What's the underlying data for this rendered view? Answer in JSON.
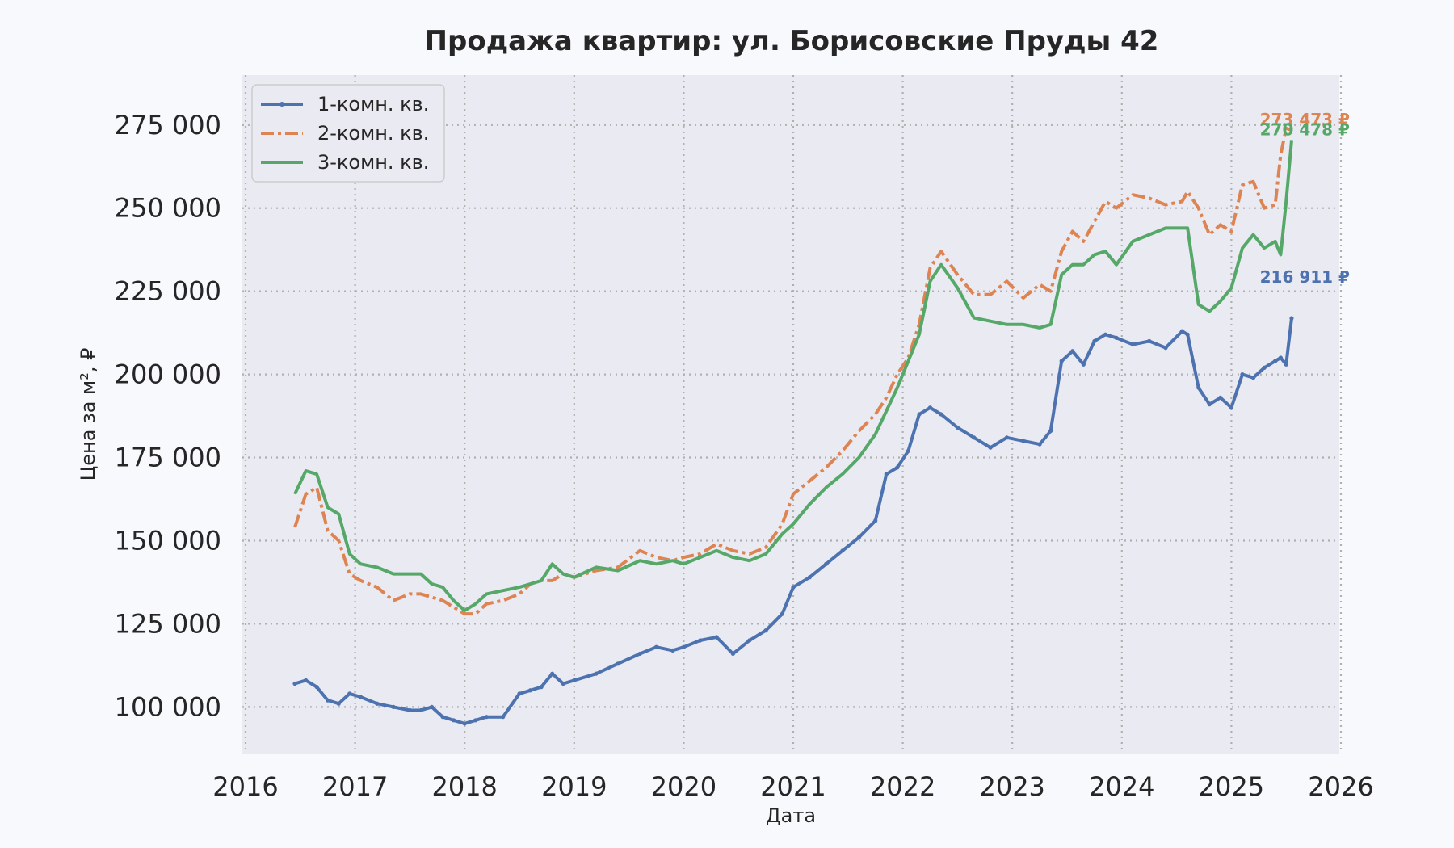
{
  "chart_data": {
    "type": "line",
    "title": "Продажа квартир: ул. Борисовские Пруды 42",
    "xlabel": "Дата",
    "ylabel": "Цена за м², ₽",
    "xlim": [
      2016.0,
      2026.0
    ],
    "ylim": [
      86000,
      290000
    ],
    "x_ticks": [
      "2016",
      "2017",
      "2018",
      "2019",
      "2020",
      "2021",
      "2022",
      "2023",
      "2024",
      "2025",
      "2026"
    ],
    "y_ticks": [
      "100 000",
      "125 000",
      "150 000",
      "175 000",
      "200 000",
      "225 000",
      "250 000",
      "275 000"
    ],
    "grid": true,
    "legend_position": "top-left",
    "series": [
      {
        "name": "1-комн. кв.",
        "color": "#4c72b0",
        "style": "solid-dotted",
        "end_label": "216 911 ₽",
        "x": [
          2016.45,
          2016.55,
          2016.65,
          2016.75,
          2016.85,
          2016.95,
          2017.05,
          2017.2,
          2017.35,
          2017.5,
          2017.6,
          2017.7,
          2017.8,
          2017.9,
          2018.0,
          2018.1,
          2018.2,
          2018.35,
          2018.5,
          2018.6,
          2018.7,
          2018.8,
          2018.9,
          2019.0,
          2019.2,
          2019.4,
          2019.6,
          2019.75,
          2019.9,
          2020.0,
          2020.15,
          2020.3,
          2020.45,
          2020.6,
          2020.75,
          2020.9,
          2021.0,
          2021.15,
          2021.3,
          2021.45,
          2021.6,
          2021.75,
          2021.85,
          2021.95,
          2022.05,
          2022.15,
          2022.25,
          2022.35,
          2022.5,
          2022.65,
          2022.8,
          2022.95,
          2023.1,
          2023.25,
          2023.35,
          2023.45,
          2023.55,
          2023.65,
          2023.75,
          2023.85,
          2023.95,
          2024.1,
          2024.25,
          2024.4,
          2024.55,
          2024.6,
          2024.7,
          2024.8,
          2024.9,
          2025.0,
          2025.1,
          2025.2,
          2025.3,
          2025.4,
          2025.45,
          2025.5,
          2025.55
        ],
        "y": [
          107000,
          108000,
          106000,
          102000,
          101000,
          104000,
          103000,
          101000,
          100000,
          99000,
          99000,
          100000,
          97000,
          96000,
          95000,
          96000,
          97000,
          97000,
          104000,
          105000,
          106000,
          110000,
          107000,
          108000,
          110000,
          113000,
          116000,
          118000,
          117000,
          118000,
          120000,
          121000,
          116000,
          120000,
          123000,
          128000,
          136000,
          139000,
          143000,
          147000,
          151000,
          156000,
          170000,
          172000,
          177000,
          188000,
          190000,
          188000,
          184000,
          181000,
          178000,
          181000,
          180000,
          179000,
          183000,
          204000,
          207000,
          203000,
          210000,
          212000,
          211000,
          209000,
          210000,
          208000,
          213000,
          212000,
          196000,
          191000,
          193000,
          190000,
          200000,
          199000,
          202000,
          204000,
          205000,
          203000,
          216911
        ]
      },
      {
        "name": "2-комн. кв.",
        "color": "#dd8452",
        "style": "dashdot",
        "end_label": "273 473 ₽",
        "x": [
          2016.45,
          2016.55,
          2016.65,
          2016.75,
          2016.85,
          2016.95,
          2017.05,
          2017.2,
          2017.35,
          2017.5,
          2017.6,
          2017.7,
          2017.8,
          2017.9,
          2018.0,
          2018.1,
          2018.2,
          2018.35,
          2018.5,
          2018.6,
          2018.7,
          2018.8,
          2018.9,
          2019.0,
          2019.2,
          2019.4,
          2019.6,
          2019.75,
          2019.9,
          2020.0,
          2020.15,
          2020.3,
          2020.45,
          2020.6,
          2020.75,
          2020.9,
          2021.0,
          2021.15,
          2021.3,
          2021.45,
          2021.6,
          2021.75,
          2021.85,
          2021.95,
          2022.05,
          2022.15,
          2022.25,
          2022.35,
          2022.5,
          2022.65,
          2022.8,
          2022.95,
          2023.1,
          2023.25,
          2023.35,
          2023.45,
          2023.55,
          2023.65,
          2023.75,
          2023.85,
          2023.95,
          2024.1,
          2024.25,
          2024.4,
          2024.55,
          2024.6,
          2024.7,
          2024.8,
          2024.9,
          2025.0,
          2025.1,
          2025.2,
          2025.3,
          2025.4,
          2025.45,
          2025.5,
          2025.55
        ],
        "y": [
          154000,
          164000,
          166000,
          153000,
          150000,
          140000,
          138000,
          136000,
          132000,
          134000,
          134000,
          133000,
          132000,
          130000,
          128000,
          128000,
          131000,
          132000,
          134000,
          137000,
          138000,
          138000,
          140000,
          139000,
          141000,
          142000,
          147000,
          145000,
          144000,
          145000,
          146000,
          149000,
          147000,
          146000,
          148000,
          155000,
          164000,
          168000,
          172000,
          177000,
          183000,
          188000,
          193000,
          200000,
          205000,
          215000,
          232000,
          237000,
          230000,
          224000,
          224000,
          228000,
          223000,
          227000,
          225000,
          237000,
          243000,
          240000,
          246000,
          252000,
          250000,
          254000,
          253000,
          251000,
          252000,
          255000,
          250000,
          242000,
          245000,
          243000,
          257000,
          258000,
          250000,
          251000,
          266000,
          274000,
          273473
        ]
      },
      {
        "name": "3-комн. кв.",
        "color": "#55a868",
        "style": "solid",
        "end_label": "270 478 ₽",
        "x": [
          2016.45,
          2016.55,
          2016.65,
          2016.75,
          2016.85,
          2016.95,
          2017.05,
          2017.2,
          2017.35,
          2017.5,
          2017.6,
          2017.7,
          2017.8,
          2017.9,
          2018.0,
          2018.1,
          2018.2,
          2018.35,
          2018.5,
          2018.6,
          2018.7,
          2018.8,
          2018.9,
          2019.0,
          2019.2,
          2019.4,
          2019.6,
          2019.75,
          2019.9,
          2020.0,
          2020.15,
          2020.3,
          2020.45,
          2020.6,
          2020.75,
          2020.9,
          2021.0,
          2021.15,
          2021.3,
          2021.45,
          2021.6,
          2021.75,
          2021.85,
          2021.95,
          2022.05,
          2022.15,
          2022.25,
          2022.35,
          2022.5,
          2022.65,
          2022.8,
          2022.95,
          2023.1,
          2023.25,
          2023.35,
          2023.45,
          2023.55,
          2023.65,
          2023.75,
          2023.85,
          2023.95,
          2024.1,
          2024.25,
          2024.4,
          2024.55,
          2024.6,
          2024.7,
          2024.8,
          2024.9,
          2025.0,
          2025.1,
          2025.2,
          2025.3,
          2025.4,
          2025.45,
          2025.5,
          2025.55
        ],
        "y": [
          164000,
          171000,
          170000,
          160000,
          158000,
          146000,
          143000,
          142000,
          140000,
          140000,
          140000,
          137000,
          136000,
          132000,
          129000,
          131000,
          134000,
          135000,
          136000,
          137000,
          138000,
          143000,
          140000,
          139000,
          142000,
          141000,
          144000,
          143000,
          144000,
          143000,
          145000,
          147000,
          145000,
          144000,
          146000,
          152000,
          155000,
          161000,
          166000,
          170000,
          175000,
          182000,
          189000,
          196000,
          204000,
          212000,
          228000,
          233000,
          226000,
          217000,
          216000,
          215000,
          215000,
          214000,
          215000,
          230000,
          233000,
          233000,
          236000,
          237000,
          233000,
          240000,
          242000,
          244000,
          244000,
          244000,
          221000,
          219000,
          222000,
          226000,
          238000,
          242000,
          238000,
          240000,
          236000,
          252000,
          270478
        ]
      }
    ]
  }
}
